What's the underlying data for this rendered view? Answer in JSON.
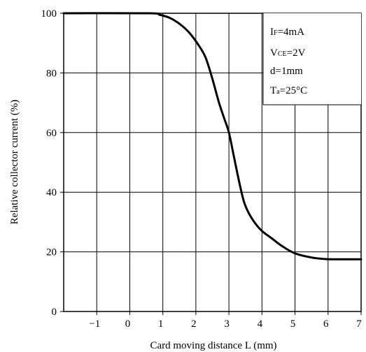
{
  "chart_data": {
    "type": "line",
    "title": "",
    "xlabel": "Card moving distance L (mm)",
    "ylabel": "Relative collector current (%)",
    "xlim": [
      -2,
      7
    ],
    "ylim": [
      0,
      100
    ],
    "x_ticks": [
      -1,
      0,
      1,
      2,
      3,
      4,
      5,
      6,
      7
    ],
    "x_tick_labels": [
      "−1",
      "0",
      "1",
      "2",
      "3",
      "4",
      "5",
      "6",
      "7"
    ],
    "y_ticks": [
      0,
      20,
      40,
      60,
      80,
      100
    ],
    "y_tick_labels": [
      "0",
      "20",
      "40",
      "60",
      "80",
      "100"
    ],
    "grid": true,
    "series": [
      {
        "x": [
          -2,
          0.6,
          0.9,
          1.2,
          1.5,
          1.8,
          2.1,
          2.3,
          2.5,
          2.7,
          2.85,
          3.0,
          3.15,
          3.3,
          3.45,
          3.6,
          3.8,
          4.0,
          4.3,
          4.6,
          5.0,
          5.5,
          5.9,
          6.2,
          7
        ],
        "y": [
          100,
          100,
          99.5,
          98.5,
          96.5,
          93.5,
          89,
          85,
          78,
          70,
          65,
          60,
          52,
          44,
          37,
          33,
          29.5,
          27,
          24.5,
          22,
          19.5,
          18.1,
          17.6,
          17.5,
          17.5
        ]
      }
    ],
    "conditions": {
      "if": {
        "main": "I",
        "sub": "F",
        "value": "=4mA"
      },
      "vce": {
        "main": "V",
        "sub": "CE",
        "value": "=2V"
      },
      "d": {
        "text": "d=1mm"
      },
      "ta": {
        "main": "T",
        "sub": "a",
        "value": "=25°C"
      }
    }
  }
}
